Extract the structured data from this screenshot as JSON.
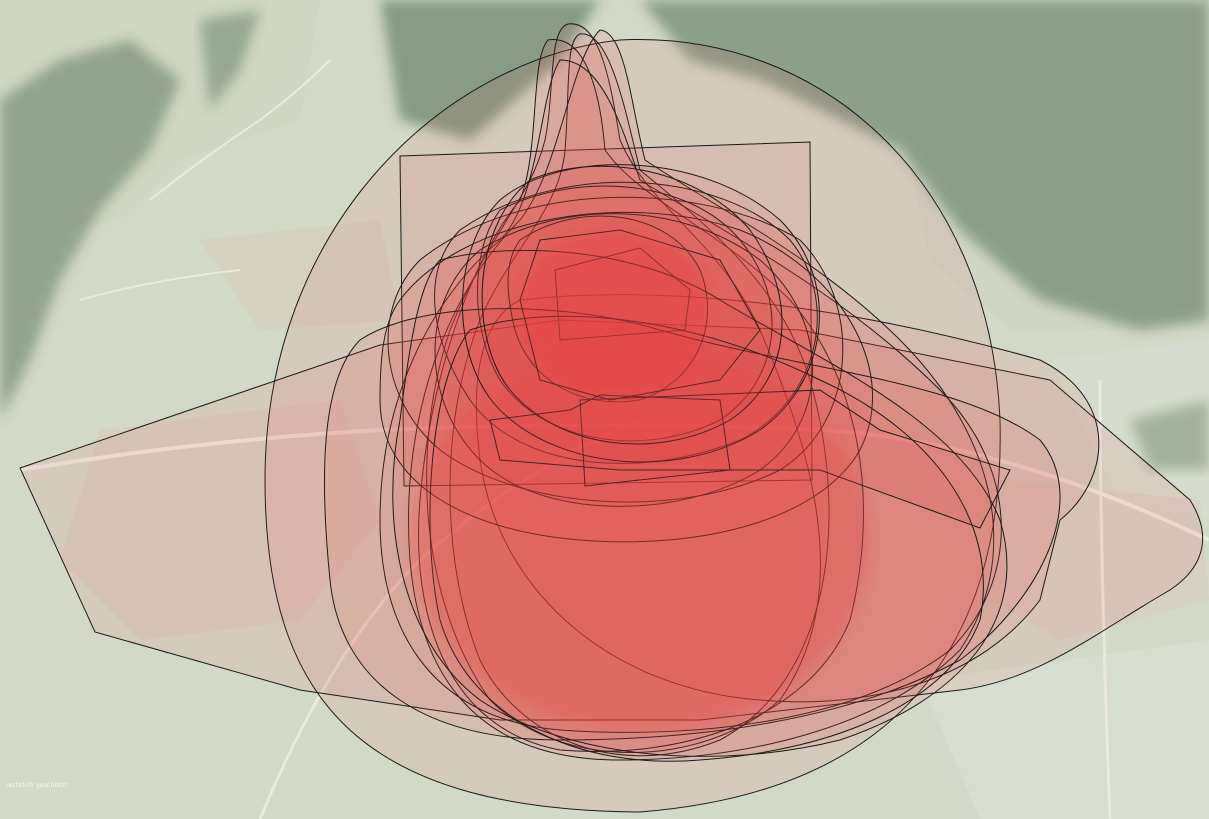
{
  "map": {
    "type": "aerial-photo-overlay",
    "overlay": {
      "description_label": "",
      "fill_color": "#e8403f",
      "stroke_color": "#1a1a1a",
      "shape_count": 24
    },
    "basemap_colors": {
      "forest": "#4e6b4d",
      "field": "#c7d0b6",
      "meadow": "#b9c6a6",
      "settlement": "#c9b9a7",
      "road": "#e8e6de"
    },
    "attribution": "rechtlich geschützt"
  }
}
